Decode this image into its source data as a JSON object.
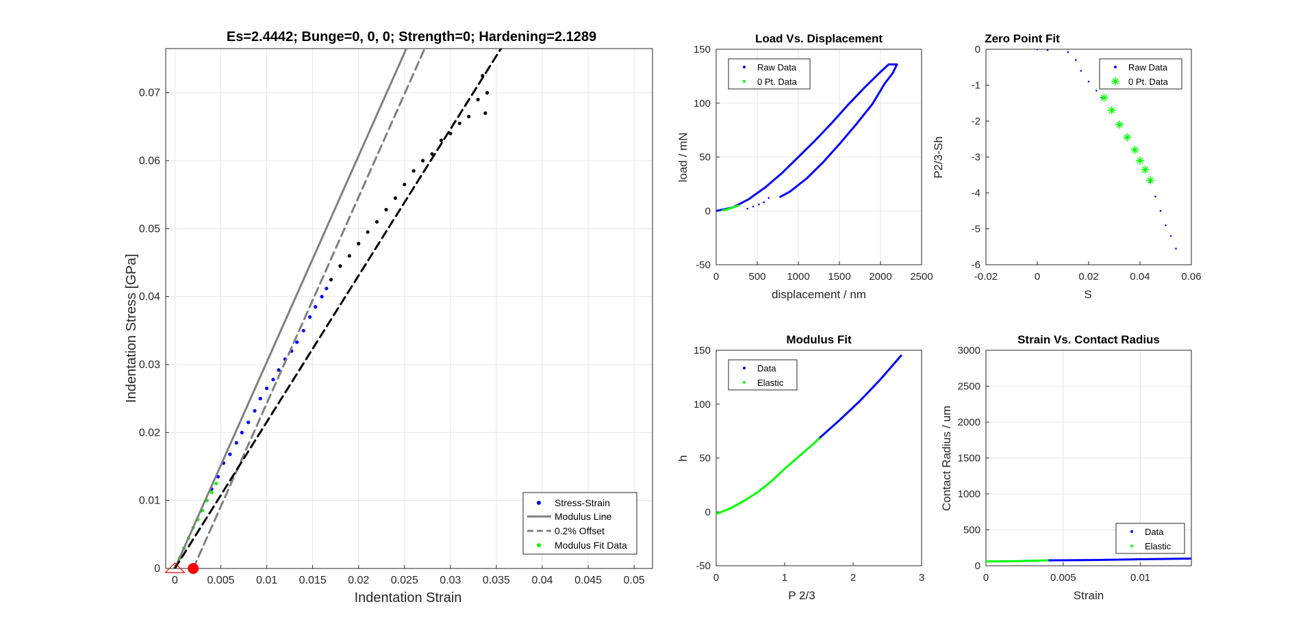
{
  "colors": {
    "blue": "#0000ff",
    "green": "#00ff00",
    "black": "#000000",
    "gray": "#808080",
    "red": "#ff0000",
    "grid": "#e6e6e6",
    "axis": "#262626"
  },
  "chart_data": [
    {
      "id": "main",
      "type": "scatter",
      "title": "Es=2.4442; Bunge=0, 0, 0; Strength=0; Hardening=2.1289",
      "xlabel": "Indentation Strain",
      "ylabel": "Indentation Stress [GPa]",
      "xlim": [
        -0.001,
        0.052
      ],
      "ylim": [
        0,
        0.0765
      ],
      "grid": true,
      "xticks": [
        0,
        0.005,
        0.01,
        0.015,
        0.02,
        0.025,
        0.03,
        0.035,
        0.04,
        0.045,
        0.05
      ],
      "xticklabels": [
        "0",
        "0.005",
        "0.01",
        "0.015",
        "0.02",
        "0.025",
        "0.03",
        "0.035",
        "0.04",
        "0.045",
        "0.05"
      ],
      "yticks": [
        0,
        0.01,
        0.02,
        0.03,
        0.04,
        0.05,
        0.06,
        0.07
      ],
      "yticklabels": [
        "0",
        "0.01",
        "0.02",
        "0.03",
        "0.04",
        "0.05",
        "0.06",
        "0.07"
      ],
      "legend": {
        "position": "bottom-right",
        "entries": [
          "Stress-Strain",
          "Modulus Line",
          "0.2% Offset",
          "Modulus Fit Data"
        ]
      },
      "series": [
        {
          "name": "Stress-Strain",
          "style": "dots",
          "color": "blue",
          "points": [
            [
              0.004,
              0.0117
            ],
            [
              0.0047,
              0.0135
            ],
            [
              0.0053,
              0.0155
            ],
            [
              0.006,
              0.0168
            ],
            [
              0.0067,
              0.0185
            ],
            [
              0.0073,
              0.02
            ],
            [
              0.008,
              0.0215
            ],
            [
              0.0087,
              0.0232
            ],
            [
              0.0093,
              0.025
            ],
            [
              0.01,
              0.0265
            ],
            [
              0.0107,
              0.0278
            ],
            [
              0.0113,
              0.0292
            ],
            [
              0.012,
              0.0308
            ],
            [
              0.0127,
              0.032
            ],
            [
              0.0133,
              0.0333
            ],
            [
              0.014,
              0.035
            ],
            [
              0.0147,
              0.037
            ],
            [
              0.0153,
              0.0385
            ],
            [
              0.016,
              0.04
            ],
            [
              0.0165,
              0.0412
            ]
          ]
        },
        {
          "name": "Stress-Strain (plastic)",
          "style": "dots",
          "color": "black",
          "points": [
            [
              0.017,
              0.0425
            ],
            [
              0.018,
              0.0445
            ],
            [
              0.019,
              0.046
            ],
            [
              0.02,
              0.0478
            ],
            [
              0.021,
              0.0495
            ],
            [
              0.022,
              0.051
            ],
            [
              0.023,
              0.0528
            ],
            [
              0.024,
              0.0545
            ],
            [
              0.025,
              0.0565
            ],
            [
              0.026,
              0.0585
            ],
            [
              0.027,
              0.06
            ],
            [
              0.028,
              0.061
            ],
            [
              0.029,
              0.063
            ],
            [
              0.03,
              0.064
            ],
            [
              0.031,
              0.0655
            ],
            [
              0.032,
              0.0665
            ],
            [
              0.033,
              0.069
            ],
            [
              0.0335,
              0.0725
            ],
            [
              0.0338,
              0.067
            ],
            [
              0.034,
              0.07
            ]
          ]
        },
        {
          "name": "Modulus Fit Data",
          "style": "dots",
          "color": "green",
          "points": [
            [
              0.0,
              0.0
            ],
            [
              0.0005,
              0.0015
            ],
            [
              0.001,
              0.003
            ],
            [
              0.0015,
              0.0045
            ],
            [
              0.002,
              0.006
            ],
            [
              0.0025,
              0.0072
            ],
            [
              0.003,
              0.0085
            ],
            [
              0.0035,
              0.01
            ],
            [
              0.004,
              0.0112
            ],
            [
              0.0045,
              0.0125
            ]
          ]
        },
        {
          "name": "Modulus Line",
          "style": "solid",
          "color": "gray",
          "points": [
            [
              0.0,
              0.0
            ],
            [
              0.0252,
              0.0765
            ]
          ]
        },
        {
          "name": "0.2% Offset",
          "style": "dashed",
          "color": "gray",
          "points": [
            [
              0.002,
              0.0
            ],
            [
              0.0272,
              0.0765
            ]
          ]
        },
        {
          "name": "Hardening Fit",
          "style": "dashed",
          "color": "black",
          "points": [
            [
              0.0,
              0.0
            ],
            [
              0.0355,
              0.0765
            ]
          ]
        }
      ],
      "markers": [
        {
          "name": "zero-point",
          "x": 0.002,
          "y": 0.0,
          "color": "red",
          "shape": "circle"
        },
        {
          "name": "origin",
          "x": 0.0,
          "y": 0.0,
          "color": "red",
          "shape": "triangle"
        }
      ]
    },
    {
      "id": "load",
      "type": "line",
      "title": "Load Vs. Displacement",
      "xlabel": "displacement / nm",
      "ylabel": "load / mN",
      "xlim": [
        0,
        2500
      ],
      "ylim": [
        -50,
        150
      ],
      "grid": true,
      "xticks": [
        0,
        500,
        1000,
        1500,
        2000,
        2500
      ],
      "xticklabels": [
        "0",
        "500",
        "1000",
        "1500",
        "2000",
        "2500"
      ],
      "yticks": [
        -50,
        0,
        50,
        100,
        150
      ],
      "yticklabels": [
        "-50",
        "0",
        "50",
        "100",
        "150"
      ],
      "legend": {
        "position": "top-left",
        "entries": [
          "Raw Data",
          "0 Pt. Data"
        ]
      },
      "series": [
        {
          "name": "Raw Data",
          "style": "thick",
          "color": "blue",
          "points": [
            [
              0,
              0
            ],
            [
              200,
              3
            ],
            [
              400,
              11
            ],
            [
              600,
              22
            ],
            [
              800,
              35
            ],
            [
              1000,
              50
            ],
            [
              1200,
              65
            ],
            [
              1400,
              81
            ],
            [
              1600,
              98
            ],
            [
              1800,
              114
            ],
            [
              2000,
              129
            ],
            [
              2100,
              136
            ],
            [
              2200,
              136
            ],
            [
              2150,
              128
            ],
            [
              2050,
              118
            ],
            [
              1900,
              99
            ],
            [
              1700,
              80
            ],
            [
              1500,
              62
            ],
            [
              1300,
              45
            ],
            [
              1100,
              30
            ],
            [
              900,
              18
            ],
            [
              780,
              13
            ]
          ]
        },
        {
          "name": "Raw Data (gap)",
          "style": "dots",
          "color": "blue",
          "points": [
            [
              380,
              2
            ],
            [
              450,
              4
            ],
            [
              520,
              6
            ],
            [
              580,
              8
            ],
            [
              640,
              12
            ]
          ]
        },
        {
          "name": "0 Pt. Data",
          "style": "thick",
          "color": "green",
          "points": [
            [
              80,
              0.5
            ],
            [
              140,
              1.5
            ],
            [
              200,
              3
            ],
            [
              270,
              5
            ]
          ]
        }
      ]
    },
    {
      "id": "zero",
      "type": "scatter",
      "title": "Zero Point Fit",
      "xlabel": "S",
      "ylabel": "P2/3-Sh",
      "xlim": [
        -0.02,
        0.06
      ],
      "ylim": [
        -6,
        0
      ],
      "grid": false,
      "xticks": [
        -0.02,
        0,
        0.02,
        0.04,
        0.06
      ],
      "xticklabels": [
        "-0.02",
        "0",
        "0.02",
        "0.04",
        "0.06"
      ],
      "yticks": [
        -6,
        -5,
        -4,
        -3,
        -2,
        -1,
        0
      ],
      "yticklabels": [
        "-6",
        "-5",
        "-4",
        "-3",
        "-2",
        "-1",
        "0"
      ],
      "legend": {
        "position": "top-right",
        "entries": [
          "Raw Data",
          "0 Pt. Data"
        ]
      },
      "series": [
        {
          "name": "Raw Data",
          "style": "dots",
          "color": "blue",
          "points": [
            [
              0.0,
              0.0
            ],
            [
              0.004,
              -0.02
            ],
            [
              0.012,
              -0.08
            ],
            [
              0.015,
              -0.3
            ],
            [
              0.017,
              -0.6
            ],
            [
              0.02,
              -0.9
            ],
            [
              0.023,
              -1.15
            ],
            [
              0.025,
              -1.35
            ],
            [
              0.044,
              -3.7
            ],
            [
              0.046,
              -4.1
            ],
            [
              0.048,
              -4.5
            ],
            [
              0.05,
              -4.9
            ],
            [
              0.052,
              -5.2
            ],
            [
              0.054,
              -5.55
            ]
          ]
        },
        {
          "name": "0 Pt. Data",
          "style": "star",
          "color": "green",
          "points": [
            [
              0.026,
              -1.35
            ],
            [
              0.029,
              -1.7
            ],
            [
              0.032,
              -2.1
            ],
            [
              0.035,
              -2.45
            ],
            [
              0.038,
              -2.8
            ],
            [
              0.04,
              -3.1
            ],
            [
              0.042,
              -3.35
            ],
            [
              0.044,
              -3.65
            ]
          ]
        }
      ]
    },
    {
      "id": "modulus",
      "type": "line",
      "title": "Modulus Fit",
      "xlabel": "P 2/3",
      "ylabel": "h",
      "xlim": [
        0,
        3
      ],
      "ylim": [
        -50,
        150
      ],
      "grid": false,
      "xticks": [
        0,
        1,
        2,
        3
      ],
      "xticklabels": [
        "0",
        "1",
        "2",
        "3"
      ],
      "yticks": [
        -50,
        0,
        50,
        100,
        150
      ],
      "yticklabels": [
        "-50",
        "0",
        "50",
        "100",
        "150"
      ],
      "legend": {
        "position": "top-left",
        "entries": [
          "Data",
          "Elastic"
        ]
      },
      "series": [
        {
          "name": "Data",
          "style": "thick",
          "color": "blue",
          "points": [
            [
              1.5,
              68
            ],
            [
              1.8,
              85
            ],
            [
              2.1,
              103
            ],
            [
              2.4,
              123
            ],
            [
              2.7,
              145
            ]
          ]
        },
        {
          "name": "Elastic",
          "style": "thick",
          "color": "green",
          "points": [
            [
              0,
              -2
            ],
            [
              0.2,
              3
            ],
            [
              0.4,
              10
            ],
            [
              0.6,
              18
            ],
            [
              0.8,
              28
            ],
            [
              1.0,
              40
            ],
            [
              1.2,
              51
            ],
            [
              1.4,
              62
            ],
            [
              1.5,
              68
            ]
          ]
        }
      ]
    },
    {
      "id": "strain",
      "type": "line",
      "title": "Strain Vs. Contact Radius",
      "xlabel": "Strain",
      "ylabel": "Contact Radius / um",
      "xlim": [
        0,
        0.0133
      ],
      "ylim": [
        0,
        3000
      ],
      "grid": true,
      "xticks": [
        0,
        0.005,
        0.01
      ],
      "xticklabels": [
        "0",
        "0.005",
        "0.01"
      ],
      "yticks": [
        0,
        500,
        1000,
        1500,
        2000,
        2500,
        3000
      ],
      "yticklabels": [
        "0",
        "500",
        "1000",
        "1500",
        "2000",
        "2500",
        "3000"
      ],
      "legend": {
        "position": "bottom-right",
        "entries": [
          "Data",
          "Elastic"
        ]
      },
      "series": [
        {
          "name": "Data",
          "style": "thick",
          "color": "blue",
          "points": [
            [
              0.004,
              75
            ],
            [
              0.007,
              80
            ],
            [
              0.01,
              90
            ],
            [
              0.0133,
              100
            ]
          ]
        },
        {
          "name": "Elastic",
          "style": "thick",
          "color": "green",
          "points": [
            [
              0,
              60
            ],
            [
              0.002,
              65
            ],
            [
              0.004,
              75
            ]
          ]
        }
      ]
    }
  ]
}
